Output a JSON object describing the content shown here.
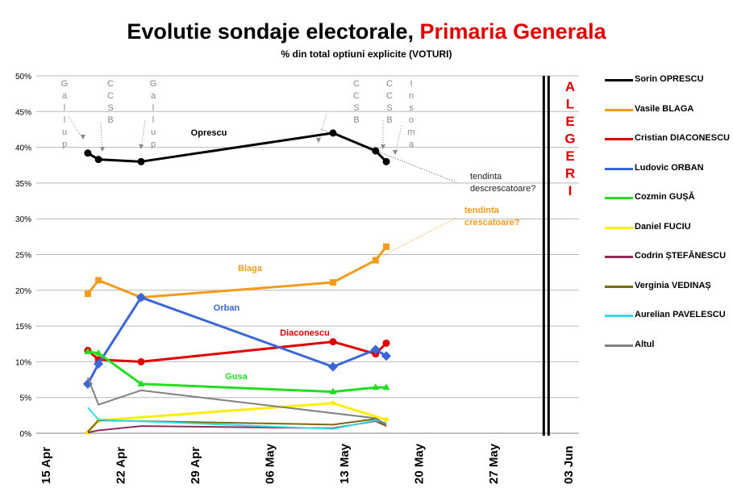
{
  "chart_data": {
    "type": "line",
    "title": "Evolutie sondaje electorale,",
    "title_highlight": "Primaria Generala",
    "subtitle": "% din total optiuni explicite (VOTURI)",
    "ylim": [
      0,
      50
    ],
    "yticks": [
      "0%",
      "5%",
      "10%",
      "15%",
      "20%",
      "25%",
      "30%",
      "35%",
      "40%",
      "45%",
      "50%"
    ],
    "xticks": [
      "15 Apr",
      "22 Apr",
      "29 Apr",
      "06 May",
      "13 May",
      "20 May",
      "27 May",
      "03 Jun"
    ],
    "grid": true,
    "legend_position": "right",
    "x": [
      "19 Apr",
      "20 Apr",
      "24 Apr",
      "12 May",
      "16 May",
      "17 May"
    ],
    "series": [
      {
        "name": "Sorin OPRESCU",
        "color": "#000000",
        "marker": "circle",
        "values": [
          39.2,
          38.3,
          38.0,
          42.0,
          39.5,
          38.0
        ]
      },
      {
        "name": "Vasile BLAGA",
        "color": "#f29b1d",
        "marker": "square",
        "values": [
          19.5,
          21.4,
          19.0,
          21.1,
          24.2,
          26.1
        ]
      },
      {
        "name": "Cristian DIACONESCU",
        "color": "#e00000",
        "marker": "circle",
        "values": [
          11.6,
          10.3,
          10.0,
          12.8,
          11.1,
          12.6
        ]
      },
      {
        "name": "Ludovic ORBAN",
        "color": "#3a66d8",
        "marker": "diamond",
        "values": [
          6.9,
          9.7,
          19.0,
          9.3,
          11.7,
          10.8
        ]
      },
      {
        "name": "Cozmin GUȘĂ",
        "color": "#22dd22",
        "marker": "triangle",
        "values": [
          11.4,
          11.2,
          6.9,
          5.8,
          6.4,
          6.4
        ]
      },
      {
        "name": "Daniel FUCIU",
        "color": "#ffee00",
        "marker": "dot",
        "values": [
          0.1,
          1.8,
          null,
          4.2,
          null,
          1.9
        ]
      },
      {
        "name": "Codrin ȘTEFĂNESCU",
        "color": "#8b2f5a",
        "marker": "none",
        "values": [
          0.1,
          0.4,
          1.0,
          0.7,
          1.7,
          1.0
        ]
      },
      {
        "name": "Verginia VEDINAȘ",
        "color": "#7a6a10",
        "marker": "none",
        "values": [
          0.2,
          1.8,
          null,
          1.2,
          2.0,
          1.0
        ]
      },
      {
        "name": "Aurelian PAVELESCU",
        "color": "#33dde8",
        "marker": "none",
        "values": [
          3.6,
          1.9,
          null,
          0.6,
          1.8,
          1.4
        ]
      },
      {
        "name": "Altul",
        "color": "#808080",
        "marker": "none",
        "values": [
          7.8,
          4.0,
          6.0,
          null,
          2.1,
          1.2
        ]
      }
    ],
    "series_labels": [
      {
        "text": "Oprescu",
        "color": "#000000"
      },
      {
        "text": "Blaga",
        "color": "#f29b1d"
      },
      {
        "text": "Orban",
        "color": "#3a66d8"
      },
      {
        "text": "Diaconescu",
        "color": "#e00000"
      },
      {
        "text": "Gusa",
        "color": "#22dd22"
      }
    ],
    "poll_sources": [
      "Gallup",
      "CCSB",
      "Gallup",
      "CCSB",
      "CCSB",
      "Insoma"
    ],
    "trend_down": "tendinta descrescatoare?",
    "trend_down_lines": [
      "tendinta",
      "descrescatoare?"
    ],
    "trend_up_lines": [
      "tendinta",
      "crescatoare?"
    ],
    "election_label": "ALEGERI",
    "election_date": "01 Jun"
  }
}
